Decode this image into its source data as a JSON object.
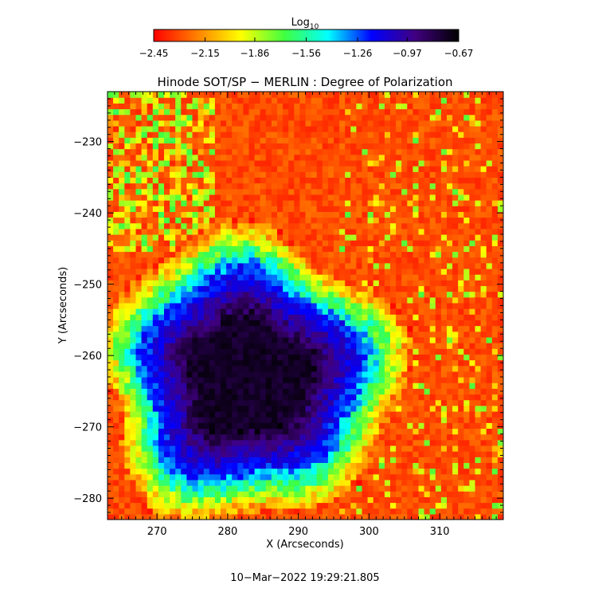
{
  "chart_data": {
    "type": "heatmap",
    "title": "Hinode SOT/SP − MERLIN : Degree of Polarization",
    "xlabel": "X (Arcseconds)",
    "ylabel": "Y (Arcseconds)",
    "xlim": [
      263,
      319
    ],
    "ylim": [
      -283,
      -223
    ],
    "x_ticks": [
      270,
      280,
      290,
      300,
      310
    ],
    "x_tick_labels": [
      "270",
      "280",
      "290",
      "300",
      "310"
    ],
    "y_ticks": [
      -230,
      -240,
      -250,
      -260,
      -270,
      -280
    ],
    "y_tick_labels": [
      "−230",
      "−240",
      "−250",
      "−260",
      "−270",
      "−280"
    ],
    "colorbar": {
      "label_base": "Log",
      "label_sub": "10",
      "min": -2.45,
      "max": -0.67,
      "ticks": [
        -2.45,
        -2.15,
        -1.86,
        -1.56,
        -1.26,
        -0.97,
        -0.67
      ],
      "tick_labels": [
        "−2.45",
        "−2.15",
        "−1.86",
        "−1.56",
        "−1.26",
        "−0.97",
        "−0.67"
      ],
      "colormap": [
        "#ff0000",
        "#ff8000",
        "#ffff00",
        "#40ff40",
        "#00ffff",
        "#0000ff",
        "#400080",
        "#000000"
      ]
    },
    "features": {
      "umbra_center": [
        283,
        -263
      ],
      "umbra_radius": 15,
      "umbra_value": -0.75,
      "penumbra_value": -1.25,
      "background_value": -2.3
    },
    "timestamp": "10−Mar−2022 19:29:21.805"
  }
}
